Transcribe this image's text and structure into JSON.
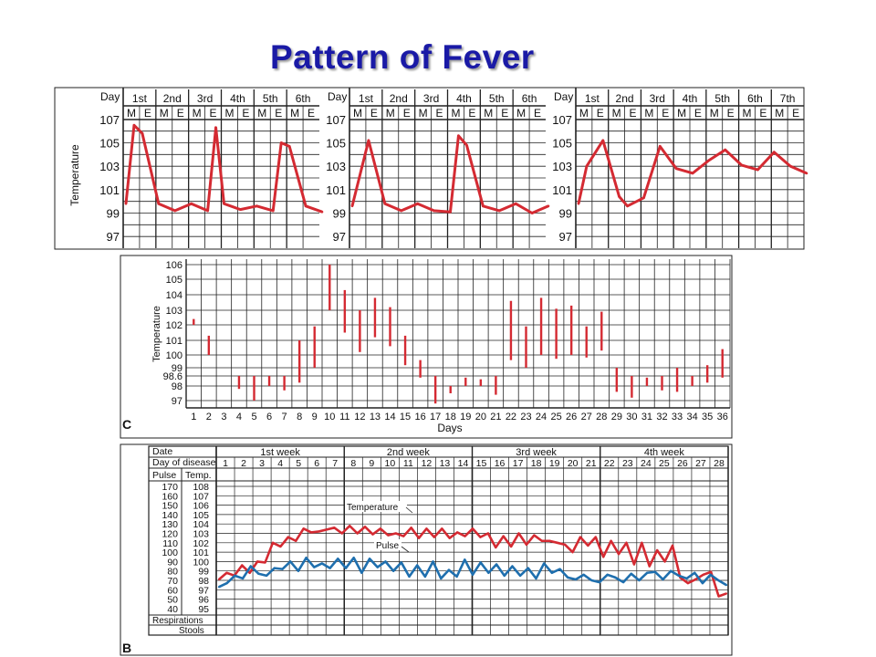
{
  "slide": {
    "title": "Pattern of Fever"
  },
  "colors": {
    "title": "#1a1aa6",
    "temperature": "#d42a32",
    "pulse": "#1f6fae",
    "grid": "#222222",
    "deco_dark": "#1a1aa6",
    "deco_light": "#b9b9dc"
  },
  "chart_data": [
    {
      "type": "line",
      "panel": "top-1",
      "corner_label": "Day",
      "days": [
        "1st",
        "2nd",
        "3rd",
        "4th",
        "5th",
        "6th"
      ],
      "periods": [
        "M",
        "E"
      ],
      "ylabel": "Temperature",
      "yticks": [
        "107",
        "105",
        "103",
        "101",
        "99",
        "97"
      ],
      "ylim": [
        96,
        108
      ],
      "x": [
        0,
        0.5,
        1,
        2,
        3,
        4,
        5,
        5.5,
        6,
        7,
        8,
        9,
        9.5,
        10,
        11,
        12
      ],
      "values": [
        99.8,
        106.5,
        105.8,
        99.8,
        99.2,
        99.8,
        99.2,
        106.3,
        99.8,
        99.3,
        99.6,
        99.2,
        105,
        104.7,
        99.6,
        99.1
      ]
    },
    {
      "type": "line",
      "panel": "top-2",
      "corner_label": "Day",
      "days": [
        "1st",
        "2nd",
        "3rd",
        "4th",
        "5th",
        "6th"
      ],
      "periods": [
        "M",
        "E"
      ],
      "yticks": [
        "107",
        "105",
        "103",
        "101",
        "99",
        "97"
      ],
      "ylim": [
        96,
        108
      ],
      "x": [
        0,
        1,
        2,
        3,
        4,
        5,
        6,
        6.5,
        7,
        8,
        9,
        10,
        11,
        12
      ],
      "values": [
        99.6,
        105.2,
        99.8,
        99.2,
        99.8,
        99.2,
        99.1,
        105.6,
        104.8,
        99.6,
        99.2,
        99.8,
        99.0,
        99.6
      ]
    },
    {
      "type": "line",
      "panel": "top-3",
      "corner_label": "Day",
      "days": [
        "1st",
        "2nd",
        "3rd",
        "4th",
        "5th",
        "6th",
        "7th"
      ],
      "periods": [
        "M",
        "E"
      ],
      "yticks": [
        "107",
        "105",
        "103",
        "101",
        "99",
        "97"
      ],
      "ylim": [
        96,
        108
      ],
      "x": [
        0,
        0.5,
        1.5,
        2.5,
        3,
        4,
        5,
        6,
        7,
        8,
        9,
        10,
        11,
        12,
        13,
        14
      ],
      "values": [
        99.8,
        103.0,
        105.2,
        100.4,
        99.6,
        100.3,
        104.7,
        102.8,
        102.4,
        103.5,
        104.4,
        103.1,
        102.7,
        104.2,
        103.0,
        102.4
      ]
    },
    {
      "type": "bar",
      "panel": "C",
      "corner_label": "C",
      "xlabel": "Days",
      "ylabel": "Temperature",
      "categories": [
        "1",
        "2",
        "3",
        "4",
        "5",
        "6",
        "7",
        "8",
        "9",
        "10",
        "11",
        "12",
        "13",
        "14",
        "15",
        "16",
        "17",
        "18",
        "19",
        "20",
        "21",
        "22",
        "23",
        "24",
        "25",
        "26",
        "27",
        "28",
        "29",
        "30",
        "31",
        "32",
        "33",
        "34",
        "35",
        "36"
      ],
      "yticks": [
        "106",
        "105",
        "104",
        "103",
        "102",
        "101",
        "100",
        "99",
        "98.6",
        "98",
        "97"
      ],
      "ranges": [
        [
          102.0,
          102.4
        ],
        [
          100.0,
          101.3
        ],
        [
          null,
          null
        ],
        [
          97.8,
          98.6
        ],
        [
          97.0,
          98.6
        ],
        [
          98.0,
          98.6
        ],
        [
          97.7,
          98.6
        ],
        [
          98.2,
          101.0
        ],
        [
          99.0,
          101.9
        ],
        [
          103.0,
          106.0
        ],
        [
          101.5,
          104.3
        ],
        [
          100.2,
          103.0
        ],
        [
          101.2,
          103.8
        ],
        [
          100.6,
          103.2
        ],
        [
          99.2,
          101.3
        ],
        [
          98.5,
          99.6
        ],
        [
          96.8,
          98.6
        ],
        [
          97.5,
          98.0
        ],
        [
          98.0,
          98.5
        ],
        [
          98.0,
          98.4
        ],
        [
          97.4,
          98.6
        ],
        [
          99.6,
          103.6
        ],
        [
          99.0,
          101.9
        ],
        [
          100.0,
          103.8
        ],
        [
          99.7,
          103.1
        ],
        [
          100.0,
          103.3
        ],
        [
          99.8,
          101.9
        ],
        [
          100.3,
          102.9
        ],
        [
          97.6,
          99.0
        ],
        [
          97.2,
          98.6
        ],
        [
          98.0,
          98.5
        ],
        [
          97.7,
          98.6
        ],
        [
          97.6,
          99.0
        ],
        [
          98.0,
          98.6
        ],
        [
          98.2,
          99.2
        ],
        [
          98.5,
          100.4
        ]
      ]
    },
    {
      "type": "line",
      "panel": "B",
      "corner_label": "B",
      "row_labels": {
        "date": "Date",
        "day_of_disease": "Day of disease",
        "pulse": "Pulse",
        "temp": "Temp.",
        "respirations": "Respirations",
        "stools": "Stools"
      },
      "weeks": [
        "1st week",
        "2nd week",
        "3rd week",
        "4th week"
      ],
      "days": [
        "1",
        "2",
        "3",
        "4",
        "5",
        "6",
        "7",
        "8",
        "9",
        "10",
        "11",
        "12",
        "13",
        "14",
        "15",
        "16",
        "17",
        "18",
        "19",
        "20",
        "21",
        "22",
        "23",
        "24",
        "25",
        "26",
        "27",
        "28"
      ],
      "pulse_ticks": [
        "170",
        "160",
        "150",
        "140",
        "130",
        "120",
        "110",
        "100",
        "90",
        "80",
        "70",
        "60",
        "50",
        "40"
      ],
      "temp_ticks": [
        "108",
        "107",
        "106",
        "105",
        "104",
        "103",
        "102",
        "101",
        "100",
        "99",
        "98",
        "97",
        "96",
        "95"
      ],
      "temp_ylim": [
        94.5,
        108.5
      ],
      "annotations": [
        "Temperature",
        "Pulse"
      ],
      "series": [
        {
          "name": "Temperature",
          "values": [
            98.1,
            98.8,
            98.5,
            99.6,
            98.8,
            100.0,
            99.9,
            102.0,
            101.6,
            102.6,
            102.2,
            103.5,
            103.1,
            103.2,
            103.4,
            103.6,
            103.0,
            103.8,
            103.0,
            103.7,
            102.9,
            103.5,
            102.8,
            103.0,
            102.7,
            103.6,
            102.5,
            103.5,
            102.6,
            103.5,
            102.5,
            103.1,
            102.7,
            103.5,
            102.6,
            103.0,
            101.5,
            102.7,
            101.6,
            103.0,
            101.8,
            102.8,
            102.2,
            102.2,
            102.0,
            101.8,
            101.0,
            102.6,
            101.7,
            102.6,
            100.5,
            102.2,
            100.8,
            102.0,
            99.7,
            102.0,
            99.5,
            101.2,
            100.0,
            101.7,
            98.3,
            97.7,
            98.1,
            98.6,
            98.9,
            96.3,
            96.6
          ]
        },
        {
          "name": "Pulse",
          "values": [
            73,
            77,
            85,
            82,
            95,
            87,
            85,
            93,
            92,
            100,
            90,
            104,
            94,
            98,
            93,
            103,
            93,
            104,
            88,
            103,
            94,
            100,
            90,
            99,
            84,
            96,
            84,
            100,
            82,
            91,
            84,
            102,
            86,
            99,
            88,
            97,
            85,
            95,
            85,
            93,
            82,
            98,
            88,
            92,
            83,
            81,
            86,
            80,
            78,
            86,
            83,
            78,
            87,
            80,
            88,
            89,
            81,
            90,
            85,
            82,
            88,
            77,
            86,
            80,
            75
          ]
        }
      ]
    }
  ]
}
